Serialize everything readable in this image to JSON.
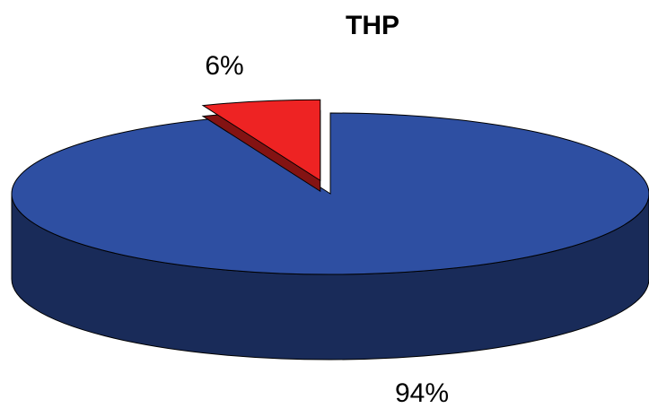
{
  "chart_data": {
    "type": "pie",
    "title": "THP",
    "categories": [
      null,
      null
    ],
    "values": [
      94,
      6
    ],
    "value_labels": [
      "94%",
      "6%"
    ],
    "colors": [
      "#2e4fa2",
      "#ee2323"
    ]
  }
}
